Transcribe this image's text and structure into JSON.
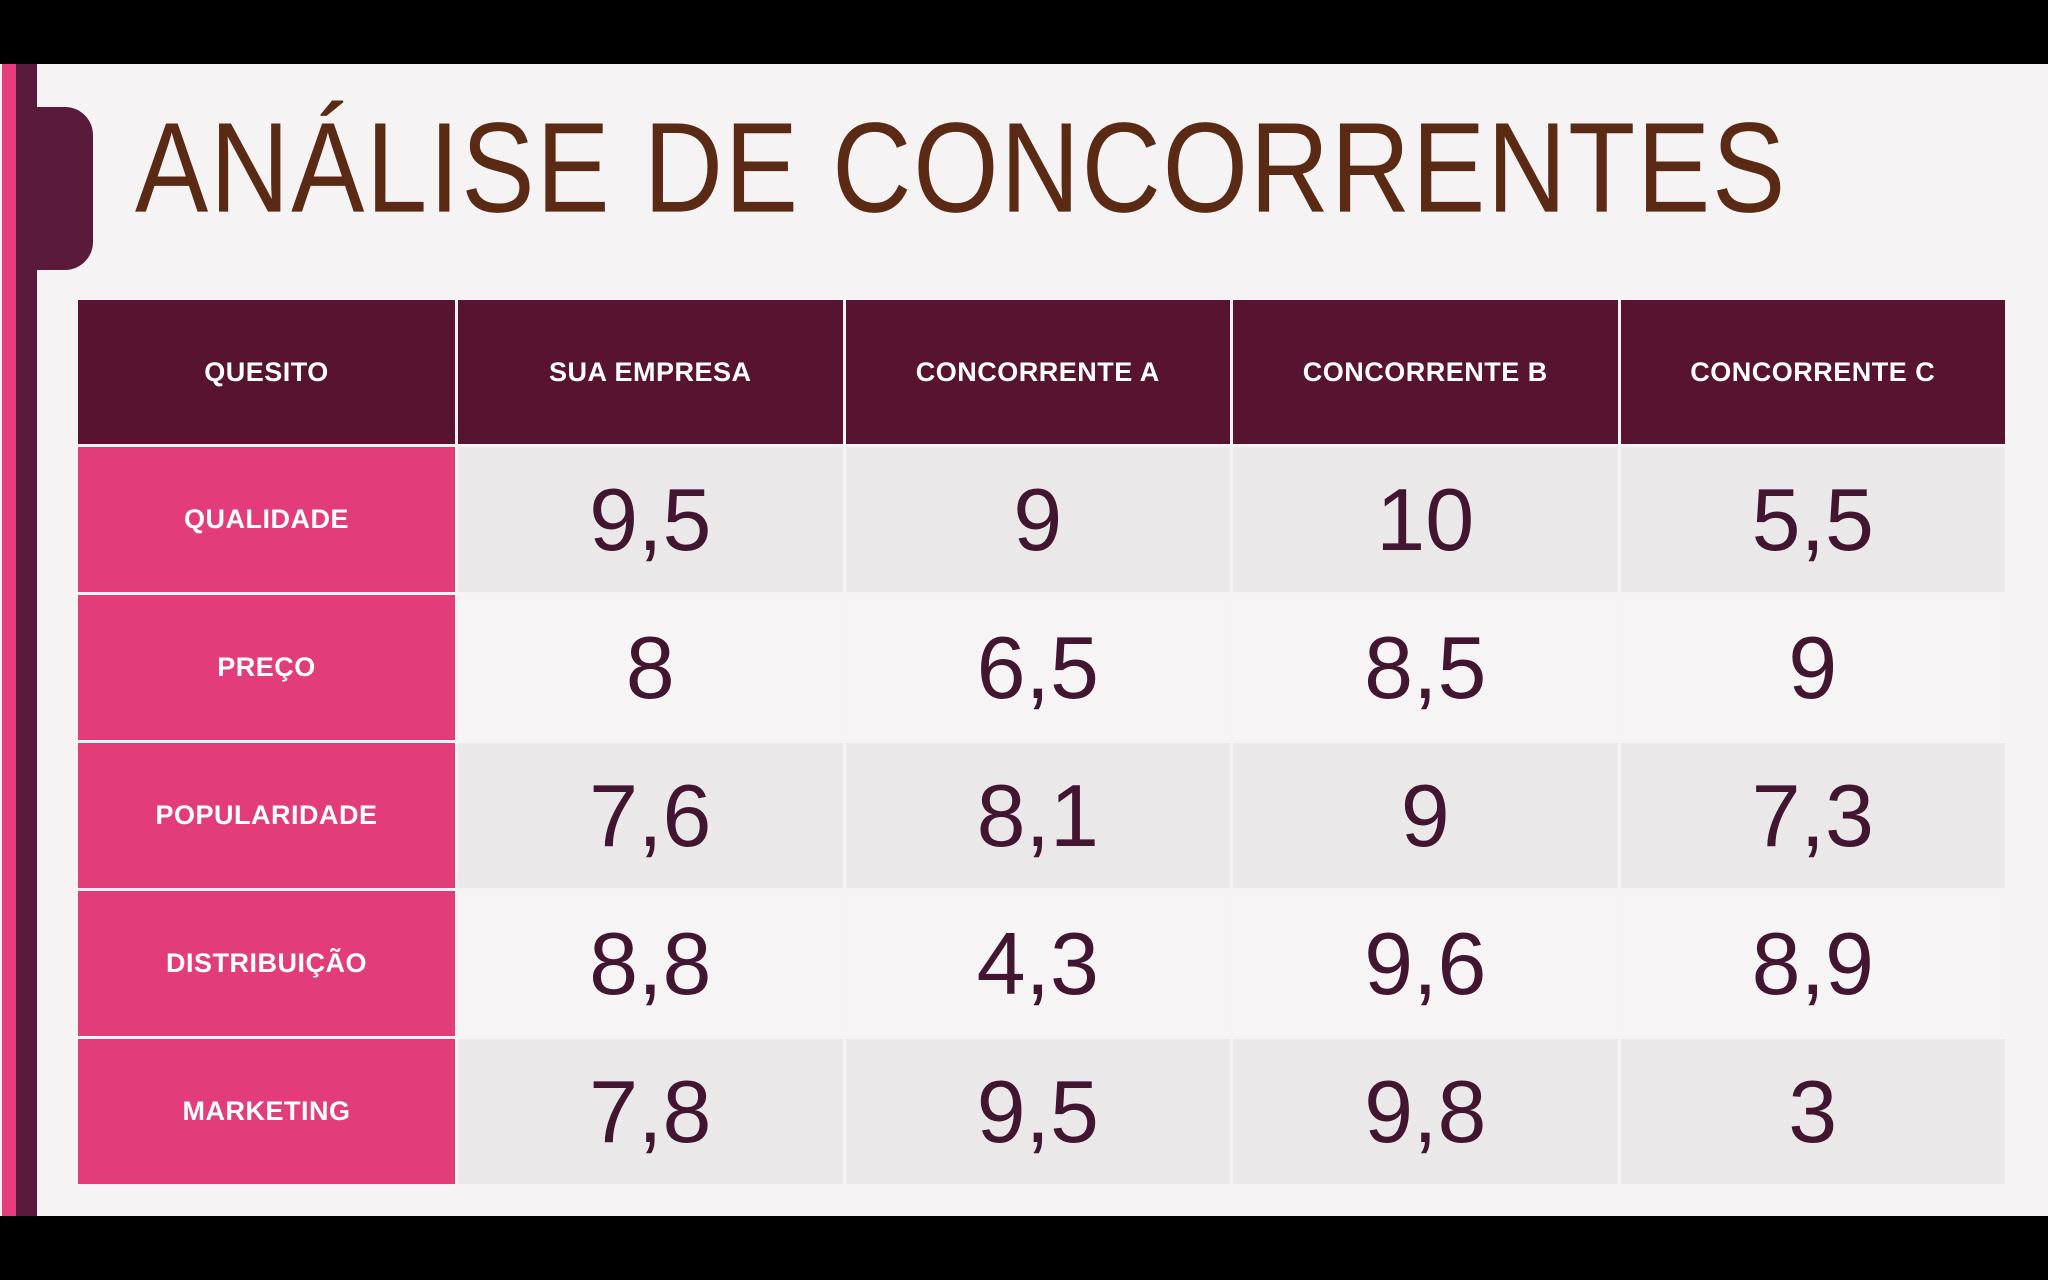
{
  "slide": {
    "title": "ANÁLISE DE CONCORRENTES"
  },
  "table": {
    "columns": [
      "QUESITO",
      "SUA EMPRESA",
      "CONCORRENTE A",
      "CONCORRENTE B",
      "CONCORRENTE C"
    ],
    "rows": [
      {
        "label": "QUALIDADE",
        "values": [
          "9,5",
          "9",
          "10",
          "5,5"
        ]
      },
      {
        "label": "PREÇO",
        "values": [
          "8",
          "6,5",
          "8,5",
          "9"
        ]
      },
      {
        "label": "POPULARIDADE",
        "values": [
          "7,6",
          "8,1",
          "9",
          "7,3"
        ]
      },
      {
        "label": "DISTRIBUIÇÃO",
        "values": [
          "8,8",
          "4,3",
          "9,6",
          "8,9"
        ]
      },
      {
        "label": "MARKETING",
        "values": [
          "7,8",
          "9,5",
          "9,8",
          "3"
        ]
      }
    ]
  },
  "chart_data": {
    "type": "table",
    "title": "ANÁLISE DE CONCORRENTES",
    "columns": [
      "QUESITO",
      "SUA EMPRESA",
      "CONCORRENTE A",
      "CONCORRENTE B",
      "CONCORRENTE C"
    ],
    "rows": [
      [
        "QUALIDADE",
        9.5,
        9,
        10,
        5.5
      ],
      [
        "PREÇO",
        8,
        6.5,
        8.5,
        9
      ],
      [
        "POPULARIDADE",
        7.6,
        8.1,
        9,
        7.3
      ],
      [
        "DISTRIBUIÇÃO",
        8.8,
        4.3,
        9.6,
        8.9
      ],
      [
        "MARKETING",
        7.8,
        9.5,
        9.8,
        3
      ]
    ]
  },
  "colors": {
    "letterbox": "#000000",
    "slide_background": "#F5F3F4",
    "header_maroon": "#57132F",
    "accent_pink": "#E23C7B",
    "stripe_pink": "#E83D7D",
    "stripe_maroon": "#5A1B3A",
    "title_brown": "#5B2A14",
    "value_text": "#421530",
    "row_gray": "#EAE8E8",
    "row_light": "#F6F4F5"
  }
}
